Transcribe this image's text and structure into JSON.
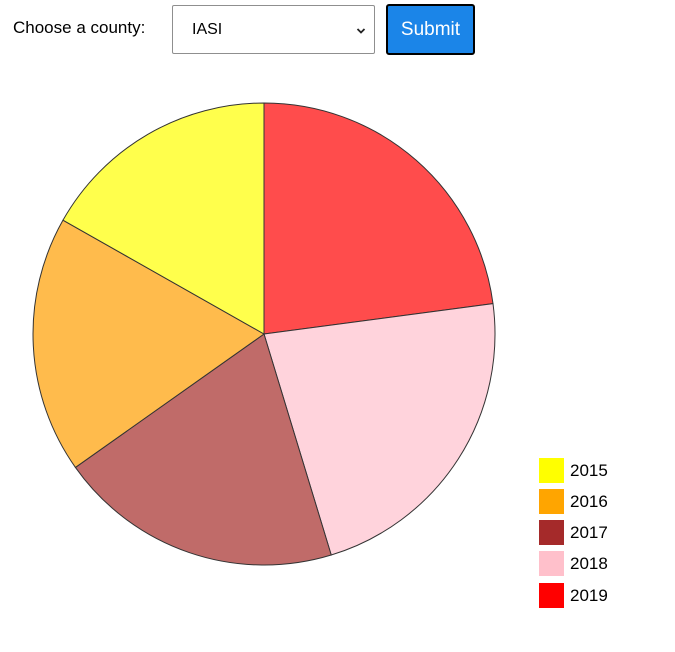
{
  "form": {
    "county_label": "Choose a county:",
    "county_selected": "IASI",
    "submit_label": "Submit"
  },
  "chart_data": {
    "type": "pie",
    "categories": [
      "2019",
      "2018",
      "2017",
      "2016",
      "2015"
    ],
    "values": [
      22.9,
      22.4,
      19.9,
      18.0,
      16.8
    ],
    "colors": [
      "#ff4c4c",
      "#ffd3dc",
      "#c06b69",
      "#ffbb4c",
      "#ffff4c"
    ],
    "start_angle_deg": 0,
    "direction": "clockwise",
    "legend": {
      "position": "bottom-right",
      "entries": [
        {
          "label": "2015",
          "color": "#ffff00"
        },
        {
          "label": "2016",
          "color": "#ffa500"
        },
        {
          "label": "2017",
          "color": "#a52a2a"
        },
        {
          "label": "2018",
          "color": "#ffc0cb"
        },
        {
          "label": "2019",
          "color": "#ff0000"
        }
      ]
    }
  }
}
